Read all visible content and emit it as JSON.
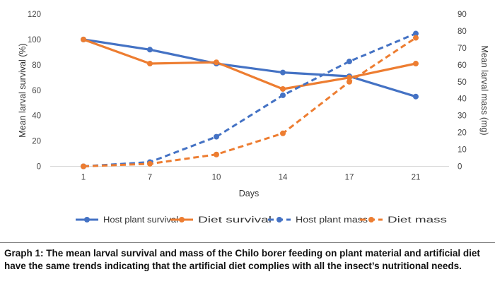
{
  "chart_data": {
    "type": "line",
    "categories": [
      "1",
      "7",
      "10",
      "14",
      "17",
      "21"
    ],
    "xlabel": "Days",
    "ylabel": "Mean larval survival (%)",
    "y2label": "Mean larval mass (mg)",
    "ylim": [
      0,
      120
    ],
    "y2lim": [
      0,
      90
    ],
    "yticks": [
      0,
      20,
      40,
      60,
      80,
      100,
      120
    ],
    "y2ticks": [
      0,
      10,
      20,
      30,
      40,
      50,
      60,
      70,
      80,
      90
    ],
    "grid": false,
    "legend_position": "bottom",
    "series": [
      {
        "name": "Host plant survival",
        "axis": "left",
        "style": "solid",
        "color": "#4472C4",
        "values": [
          100,
          92,
          81,
          74,
          71,
          55
        ]
      },
      {
        "name": "Diet survival",
        "axis": "left",
        "style": "solid",
        "color": "#ED7D31",
        "values": [
          100,
          81,
          82,
          61,
          70,
          81
        ]
      },
      {
        "name": "Host plant mass",
        "axis": "right",
        "style": "dashed",
        "color": "#4472C4",
        "values": [
          0,
          2.5,
          17.5,
          42,
          62,
          78.5
        ]
      },
      {
        "name": "Diet mass",
        "axis": "right",
        "style": "dashed",
        "color": "#ED7D31",
        "values": [
          0,
          1.5,
          7,
          19.5,
          50,
          76
        ]
      }
    ]
  },
  "caption": "Graph 1: The mean larval survival and mass of the Chilo borer feeding on plant material and artificial diet have the same trends indicating that the artificial diet complies with all the insect’s nutritional needs."
}
